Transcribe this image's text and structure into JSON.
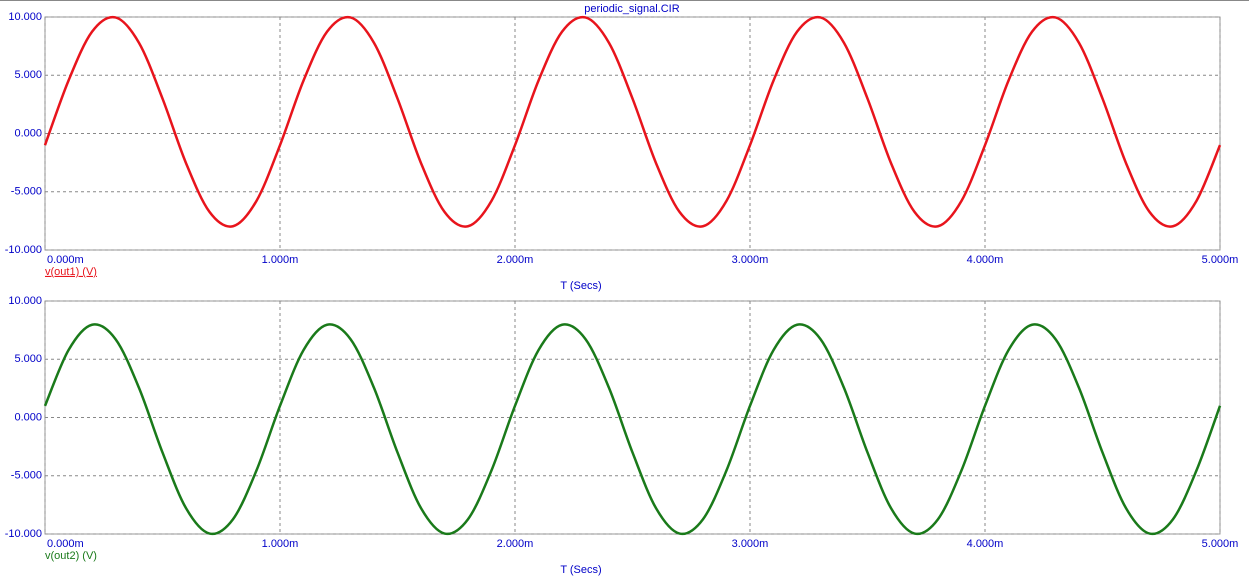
{
  "chart_data": [
    {
      "type": "line",
      "title": "periodic_signal.CIR",
      "xlabel": "T (Secs)",
      "grid": true,
      "x": [
        0,
        0.1,
        0.2,
        0.3,
        0.4,
        0.5,
        0.6,
        0.7,
        0.8,
        0.9,
        1.0,
        1.1,
        1.2,
        1.3,
        1.4,
        1.5,
        1.6,
        1.7,
        1.8,
        1.9,
        2.0,
        2.1,
        2.2,
        2.3,
        2.4,
        2.5,
        2.6,
        2.7,
        2.8,
        2.9,
        3.0,
        3.1,
        3.2,
        3.3,
        3.4,
        3.5,
        3.6,
        3.7,
        3.8,
        3.9,
        4.0,
        4.1,
        4.2,
        4.3,
        4.4,
        4.5,
        4.6,
        4.7,
        4.8,
        4.9,
        5.0
      ],
      "series": [
        {
          "name": "v(out1) (V)",
          "color": "#e8141c",
          "values": [
            -1.0,
            4.54,
            8.73,
            9.96,
            7.78,
            3.0,
            -2.54,
            -6.73,
            -7.96,
            -5.78,
            -1.0,
            4.54,
            8.73,
            9.96,
            7.78,
            3.0,
            -2.54,
            -6.73,
            -7.96,
            -5.78,
            -1.0,
            4.54,
            8.73,
            9.96,
            7.78,
            3.0,
            -2.54,
            -6.73,
            -7.96,
            -5.78,
            -1.0,
            4.54,
            8.73,
            9.96,
            7.78,
            3.0,
            -2.54,
            -6.73,
            -7.96,
            -5.78,
            -1.0,
            4.54,
            8.73,
            9.96,
            7.78,
            3.0,
            -2.54,
            -6.73,
            -7.96,
            -5.78,
            -1.0
          ]
        }
      ],
      "xlim": [
        0,
        5
      ],
      "xticks": [
        {
          "value": 0,
          "label": "0.000m"
        },
        {
          "value": 1,
          "label": "1.000m"
        },
        {
          "value": 2,
          "label": "2.000m"
        },
        {
          "value": 3,
          "label": "3.000m"
        },
        {
          "value": 4,
          "label": "4.000m"
        },
        {
          "value": 5,
          "label": "5.000m"
        }
      ],
      "ylim": [
        -10,
        10
      ],
      "yticks": [
        {
          "value": -10,
          "label": "-10.000"
        },
        {
          "value": -5,
          "label": "-5.000"
        },
        {
          "value": 0,
          "label": "0.000"
        },
        {
          "value": 5,
          "label": "5.000"
        },
        {
          "value": 10,
          "label": "10.000"
        }
      ]
    },
    {
      "type": "line",
      "xlabel": "T (Secs)",
      "grid": true,
      "x": [
        0,
        0.1,
        0.2,
        0.3,
        0.4,
        0.5,
        0.6,
        0.7,
        0.8,
        0.9,
        1.0,
        1.1,
        1.2,
        1.3,
        1.4,
        1.5,
        1.6,
        1.7,
        1.8,
        1.9,
        2.0,
        2.1,
        2.2,
        2.3,
        2.4,
        2.5,
        2.6,
        2.7,
        2.8,
        2.9,
        3.0,
        3.1,
        3.2,
        3.3,
        3.4,
        3.5,
        3.6,
        3.7,
        3.8,
        3.9,
        4.0,
        4.1,
        4.2,
        4.3,
        4.4,
        4.5,
        4.6,
        4.7,
        4.8,
        4.9,
        5.0
      ],
      "series": [
        {
          "name": "v(out2) (V)",
          "color": "#1a7a1a",
          "values": [
            1.0,
            5.78,
            7.96,
            6.73,
            2.54,
            -3.0,
            -7.78,
            -9.96,
            -8.73,
            -4.54,
            1.0,
            5.78,
            7.96,
            6.73,
            2.54,
            -3.0,
            -7.78,
            -9.96,
            -8.73,
            -4.54,
            1.0,
            5.78,
            7.96,
            6.73,
            2.54,
            -3.0,
            -7.78,
            -9.96,
            -8.73,
            -4.54,
            1.0,
            5.78,
            7.96,
            6.73,
            2.54,
            -3.0,
            -7.78,
            -9.96,
            -8.73,
            -4.54,
            1.0,
            5.78,
            7.96,
            6.73,
            2.54,
            -3.0,
            -7.78,
            -9.96,
            -8.73,
            -4.54,
            1.0
          ]
        }
      ],
      "xlim": [
        0,
        5
      ],
      "xticks": [
        {
          "value": 0,
          "label": "0.000m"
        },
        {
          "value": 1,
          "label": "1.000m"
        },
        {
          "value": 2,
          "label": "2.000m"
        },
        {
          "value": 3,
          "label": "3.000m"
        },
        {
          "value": 4,
          "label": "4.000m"
        },
        {
          "value": 5,
          "label": "5.000m"
        }
      ],
      "ylim": [
        -10,
        10
      ],
      "yticks": [
        {
          "value": -10,
          "label": "-10.000"
        },
        {
          "value": -5,
          "label": "-5.000"
        },
        {
          "value": 0,
          "label": "0.000"
        },
        {
          "value": 5,
          "label": "5.000"
        },
        {
          "value": 10,
          "label": "10.000"
        }
      ]
    }
  ]
}
